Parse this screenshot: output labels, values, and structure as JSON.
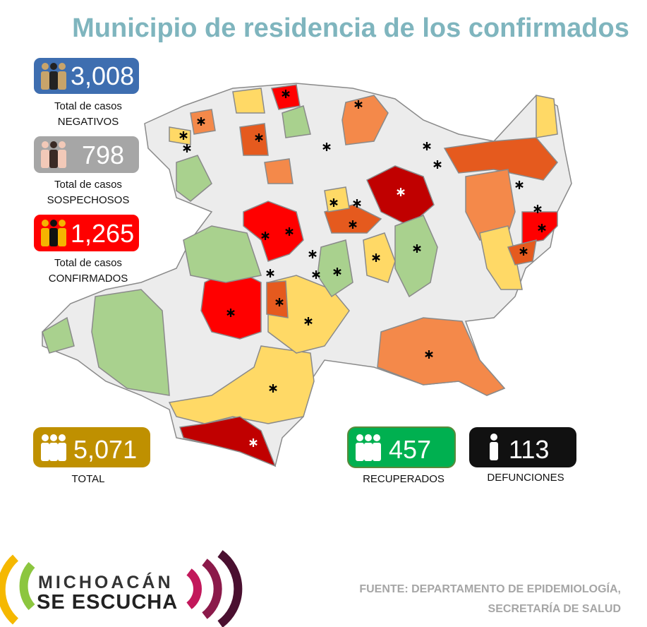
{
  "header": {
    "title": "Municipio de residencia de los confirmados"
  },
  "stats": [
    {
      "value": "3,008",
      "line1": "Total de casos",
      "line2": "NEGATIVOS"
    },
    {
      "value": "798",
      "line1": "Total de casos",
      "line2": "SOSPECHOSOS"
    },
    {
      "value": "1,265",
      "line1": "Total de casos",
      "line2": "CONFIRMADOS"
    }
  ],
  "totals": [
    {
      "value": "5,071",
      "label": "TOTAL"
    },
    {
      "value": "457",
      "label": "RECUPERADOS"
    },
    {
      "value": "113",
      "label": "DEFUNCIONES"
    }
  ],
  "logo": {
    "line1": "MICHOACÁN",
    "line2": "SE ESCUCHA"
  },
  "source": {
    "line1": "FUENTE: DEPARTAMENTO DE EPIDEMIOLOGÍA,",
    "line2": "SECRETARÍA DE SALUD"
  }
}
